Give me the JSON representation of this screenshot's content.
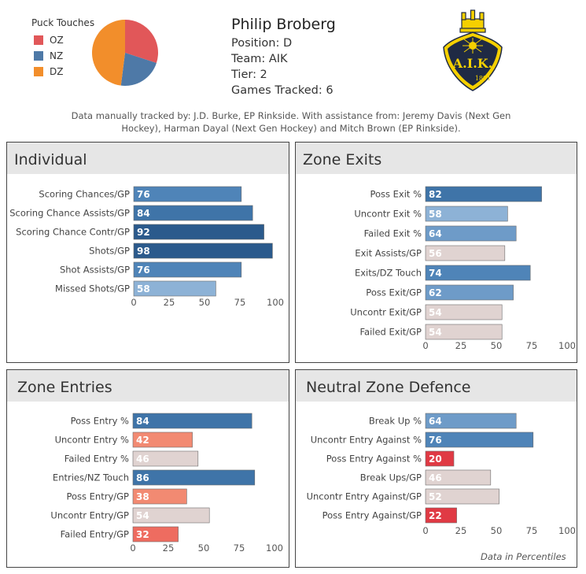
{
  "pie": {
    "legend_title": "Puck Touches",
    "slices": [
      {
        "label": "OZ",
        "value": 30,
        "color": "#e15759"
      },
      {
        "label": "NZ",
        "value": 22,
        "color": "#4e79a7"
      },
      {
        "label": "DZ",
        "value": 48,
        "color": "#f28e2b"
      }
    ]
  },
  "player": {
    "name": "Philip Broberg",
    "position": "Position: D",
    "team": "Team: AIK",
    "tier": "Tier: 2",
    "games": "Games Tracked: 6"
  },
  "logo": {
    "text": "A.I.K.",
    "year": "1891"
  },
  "credits": {
    "line1": "Data manually tracked by: J.D. Burke, EP Rinkside. With assistance from: Jeremy Davis (Next Gen",
    "line2": "Hockey), Harman Dayal (Next Gen Hockey) and Mitch Brown (EP Rinkside)."
  },
  "footnote": "Data in Percentiles",
  "chart_data": [
    {
      "type": "bar",
      "title": "Individual",
      "categories": [
        "Scoring Chances/GP",
        "Scoring Chance Assists/GP",
        "Scoring Chance Contr/GP",
        "Shots/GP",
        "Shot Assists/GP",
        "Missed Shots/GP"
      ],
      "values": [
        76,
        84,
        92,
        98,
        76,
        58
      ],
      "xlim": [
        0,
        100
      ],
      "ticks": [
        0,
        25,
        50,
        75,
        100
      ]
    },
    {
      "type": "bar",
      "title": "Zone Exits",
      "categories": [
        "Poss Exit %",
        "Uncontr Exit %",
        "Failed Exit %",
        "Exit Assists/GP",
        "Exits/DZ Touch",
        "Poss Exit/GP",
        "Uncontr Exit/GP",
        "Failed Exit/GP"
      ],
      "values": [
        82,
        58,
        64,
        56,
        74,
        62,
        54,
        54
      ],
      "xlim": [
        0,
        100
      ],
      "ticks": [
        0,
        25,
        50,
        75,
        100
      ]
    },
    {
      "type": "bar",
      "title": "Zone Entries",
      "categories": [
        "Poss Entry %",
        "Uncontr Entry %",
        "Failed Entry %",
        "Entries/NZ Touch",
        "Poss Entry/GP",
        "Uncontr Entry/GP",
        "Failed Entry/GP"
      ],
      "values": [
        84,
        42,
        46,
        86,
        38,
        54,
        32
      ],
      "xlim": [
        0,
        100
      ],
      "ticks": [
        0,
        25,
        50,
        75,
        100
      ]
    },
    {
      "type": "bar",
      "title": "Neutral Zone Defence",
      "categories": [
        "Break Up %",
        "Uncontr Entry Against %",
        "Poss Entry Against %",
        "Break Ups/GP",
        "Uncontr Entry Against/GP",
        "Poss Entry Against/GP"
      ],
      "values": [
        64,
        76,
        20,
        46,
        52,
        22
      ],
      "xlim": [
        0,
        100
      ],
      "ticks": [
        0,
        25,
        50,
        75,
        100
      ]
    }
  ]
}
